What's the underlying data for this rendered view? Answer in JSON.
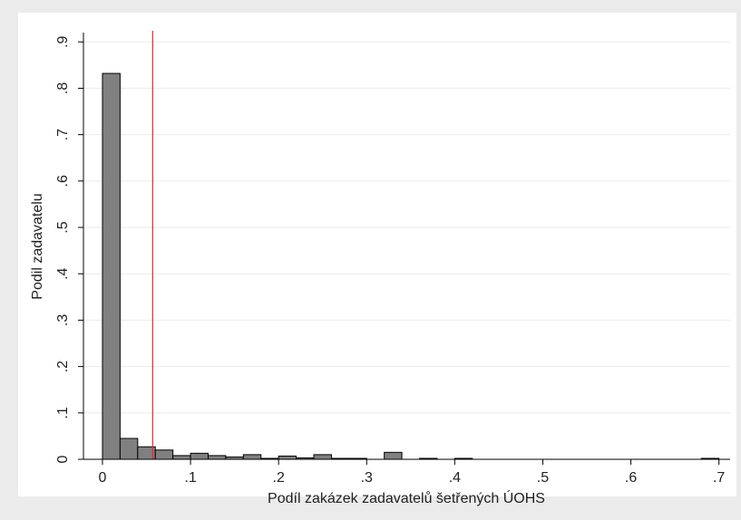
{
  "chart_data": {
    "type": "histogram",
    "x_label": "Podíl zakázek zadavatelů šetřených ÚOHS",
    "y_label": "Podil zadavatelu",
    "bins": [
      0,
      0.02,
      0.04,
      0.06,
      0.08,
      0.1,
      0.12,
      0.14,
      0.16,
      0.18,
      0.2,
      0.22,
      0.24,
      0.26,
      0.28,
      0.3,
      0.32,
      0.34,
      0.36,
      0.38,
      0.4,
      0.42,
      0.44,
      0.46,
      0.48,
      0.5,
      0.52,
      0.54,
      0.56,
      0.58,
      0.6,
      0.62,
      0.64,
      0.66,
      0.68,
      0.7
    ],
    "values": [
      0.832,
      0.045,
      0.027,
      0.02,
      0.008,
      0.013,
      0.008,
      0.005,
      0.01,
      0.002,
      0.007,
      0.003,
      0.01,
      0.002,
      0.002,
      0,
      0.015,
      0,
      0.002,
      0,
      0.002,
      0,
      0,
      0,
      0,
      0,
      0,
      0,
      0,
      0,
      0,
      0,
      0,
      0,
      0.002
    ],
    "color": "#808080",
    "reference_line": 0.057,
    "reference_color": "#e8262b",
    "xlim": [
      -0.0216,
      0.7127
    ],
    "ylim": [
      0,
      0.92
    ],
    "xticks": [
      0,
      {
        "value": 0.1,
        "label": ".1"
      },
      {
        "value": 0.2,
        "label": ".2"
      },
      {
        "value": 0.3,
        "label": ".3"
      },
      {
        "value": 0.4,
        "label": ".4"
      },
      {
        "value": 0.5,
        "label": ".5"
      },
      {
        "value": 0.6,
        "label": ".6"
      },
      {
        "value": 0.7,
        "label": ".7"
      }
    ],
    "yticks": [
      0,
      {
        "value": 0.1,
        "label": ".1"
      },
      {
        "value": 0.2,
        "label": ".2"
      },
      {
        "value": 0.3,
        "label": ".3"
      },
      {
        "value": 0.4,
        "label": ".4"
      },
      {
        "value": 0.5,
        "label": ".5"
      },
      {
        "value": 0.6,
        "label": ".6"
      },
      {
        "value": 0.7,
        "label": ".7"
      },
      {
        "value": 0.8,
        "label": ".8"
      },
      {
        "value": 0.9,
        "label": ".9"
      }
    ],
    "grid": true
  }
}
